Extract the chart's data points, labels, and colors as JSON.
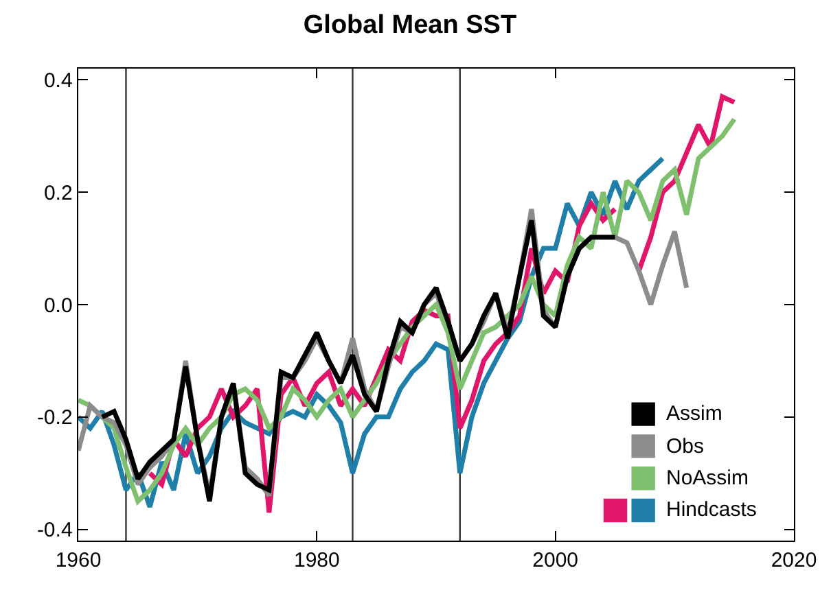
{
  "chart_data": {
    "type": "line",
    "title": "Global Mean SST",
    "xlim": [
      1960,
      2020
    ],
    "xticks": [
      1960,
      1980,
      2000,
      2020
    ],
    "ylim": [
      -0.42,
      0.42
    ],
    "yticks": [
      {
        "value": -0.4,
        "label": "-0.4"
      },
      {
        "value": -0.2,
        "label": "-0.2"
      },
      {
        "value": 0,
        "label": "0.0"
      },
      0.2,
      0.4
    ],
    "grid": false,
    "legend": "bottom right",
    "ref_lines": [
      {
        "axis": "x",
        "value": 1964,
        "color": "#333333"
      },
      {
        "axis": "x",
        "value": 1983,
        "color": "#333333"
      },
      {
        "axis": "x",
        "value": 1992,
        "color": "#333333"
      }
    ],
    "series": [
      {
        "name": "Assim",
        "color": "#000000",
        "x": [
          1962,
          1963,
          1964,
          1965,
          1966,
          1967,
          1968,
          1969,
          1970,
          1971,
          1972,
          1973,
          1974,
          1975,
          1976,
          1977,
          1978,
          1979,
          1980,
          1981,
          1982,
          1983,
          1984,
          1985,
          1986,
          1987,
          1988,
          1989,
          1990,
          1991,
          1992,
          1993,
          1994,
          1995,
          1996,
          1997,
          1998,
          1999,
          2000,
          2001,
          2002,
          2003,
          2004,
          2005
        ],
        "values": [
          -0.2,
          -0.19,
          -0.24,
          -0.31,
          -0.28,
          -0.26,
          -0.24,
          -0.11,
          -0.24,
          -0.35,
          -0.2,
          -0.14,
          -0.3,
          -0.32,
          -0.33,
          -0.12,
          -0.13,
          -0.09,
          -0.05,
          -0.1,
          -0.14,
          -0.09,
          -0.16,
          -0.19,
          -0.1,
          -0.03,
          -0.05,
          0.0,
          0.03,
          -0.03,
          -0.1,
          -0.07,
          -0.02,
          0.02,
          -0.06,
          0.05,
          0.15,
          -0.02,
          -0.04,
          0.05,
          0.1,
          0.12,
          0.12,
          0.12
        ]
      },
      {
        "name": "Obs",
        "color": "#8c8c8c",
        "x": [
          1960,
          1961,
          1962,
          1963,
          1964,
          1965,
          1966,
          1967,
          1968,
          1969,
          1970,
          1971,
          1972,
          1973,
          1974,
          1975,
          1976,
          1977,
          1978,
          1979,
          1980,
          1981,
          1982,
          1983,
          1984,
          1985,
          1986,
          1987,
          1988,
          1989,
          1990,
          1991,
          1992,
          1993,
          1994,
          1995,
          1996,
          1997,
          1998,
          1999,
          2000,
          2001,
          2002,
          2003,
          2004,
          2005,
          2006,
          2007,
          2008,
          2009,
          2010,
          2011
        ],
        "values": [
          -0.26,
          -0.18,
          -0.2,
          -0.21,
          -0.25,
          -0.32,
          -0.29,
          -0.27,
          -0.24,
          -0.1,
          -0.24,
          -0.34,
          -0.2,
          -0.14,
          -0.29,
          -0.31,
          -0.34,
          -0.13,
          -0.13,
          -0.1,
          -0.06,
          -0.1,
          -0.14,
          -0.06,
          -0.15,
          -0.19,
          -0.11,
          -0.04,
          -0.05,
          0.0,
          0.02,
          -0.03,
          -0.1,
          -0.07,
          -0.03,
          0.02,
          -0.05,
          0.05,
          0.17,
          -0.01,
          -0.04,
          0.05,
          0.1,
          0.12,
          0.12,
          0.12,
          0.11,
          0.06,
          0.0,
          0.07,
          0.13,
          0.03
        ]
      },
      {
        "name": "NoAssim",
        "color": "#7fc06e",
        "x": [
          1960,
          1961,
          1962,
          1963,
          1964,
          1965,
          1966,
          1967,
          1968,
          1969,
          1970,
          1971,
          1972,
          1973,
          1974,
          1975,
          1976,
          1977,
          1978,
          1979,
          1980,
          1981,
          1982,
          1983,
          1984,
          1985,
          1986,
          1987,
          1988,
          1989,
          1990,
          1991,
          1992,
          1993,
          1994,
          1995,
          1996,
          1997,
          1998,
          1999,
          2000,
          2001,
          2002,
          2003,
          2004,
          2005,
          2006,
          2007,
          2008,
          2009,
          2010,
          2011,
          2012,
          2013,
          2014,
          2015
        ],
        "values": [
          -0.17,
          -0.18,
          -0.2,
          -0.22,
          -0.29,
          -0.35,
          -0.33,
          -0.3,
          -0.25,
          -0.22,
          -0.25,
          -0.22,
          -0.2,
          -0.16,
          -0.15,
          -0.17,
          -0.22,
          -0.2,
          -0.15,
          -0.17,
          -0.2,
          -0.17,
          -0.15,
          -0.2,
          -0.17,
          -0.14,
          -0.1,
          -0.07,
          -0.04,
          -0.02,
          0.0,
          -0.05,
          -0.15,
          -0.1,
          -0.05,
          -0.04,
          -0.02,
          0.0,
          0.05,
          0.0,
          -0.02,
          0.07,
          0.12,
          0.1,
          0.2,
          0.12,
          0.22,
          0.2,
          0.15,
          0.22,
          0.24,
          0.16,
          0.26,
          0.28,
          0.3,
          0.33
        ]
      },
      {
        "color": "#e0166a",
        "x": [
          1966,
          1967,
          1968,
          1969,
          1970,
          1971,
          1972,
          1973,
          1974,
          1975,
          1976,
          1977,
          1978,
          1979,
          1980,
          1981,
          1982,
          1983,
          1984,
          1985,
          1986,
          1987,
          1988,
          1989,
          1990,
          1991,
          1992,
          1993,
          1994,
          1995,
          1996,
          1997,
          1998,
          1999,
          2000,
          2001,
          2002,
          2003,
          2004,
          2005,
          2006,
          2007,
          2008,
          2009,
          2010,
          2011,
          2012,
          2013,
          2014,
          2015
        ],
        "values": [
          -0.3,
          -0.32,
          -0.24,
          -0.27,
          -0.22,
          -0.2,
          -0.15,
          -0.2,
          -0.18,
          -0.15,
          -0.37,
          -0.16,
          -0.13,
          -0.18,
          -0.14,
          -0.12,
          -0.18,
          -0.15,
          -0.18,
          -0.13,
          -0.08,
          -0.1,
          -0.03,
          -0.01,
          -0.02,
          -0.02,
          -0.22,
          -0.17,
          -0.1,
          -0.07,
          -0.05,
          -0.02,
          0.1,
          0.02,
          0.06,
          0.04,
          0.14,
          0.18,
          0.15,
          0.17,
          null,
          0.06,
          0.12,
          0.2,
          0.22,
          0.27,
          0.32,
          0.28,
          0.37,
          0.36
        ]
      },
      {
        "name": "Hindcasts",
        "color": "#1f7fa8",
        "x": [
          1960,
          1961,
          1962,
          1963,
          1964,
          1965,
          1966,
          1967,
          1968,
          1969,
          1970,
          1971,
          1972,
          1973,
          1974,
          1975,
          1976,
          1977,
          1978,
          1979,
          1980,
          1981,
          1982,
          1983,
          1984,
          1985,
          1986,
          1987,
          1988,
          1989,
          1990,
          1991,
          1992,
          1993,
          1994,
          1995,
          1996,
          1997,
          1998,
          1999,
          2000,
          2001,
          2002,
          2003,
          2004,
          2005,
          2006,
          2007,
          2008,
          2009
        ],
        "values": [
          -0.2,
          -0.22,
          -0.19,
          -0.25,
          -0.33,
          -0.3,
          -0.36,
          -0.28,
          -0.33,
          -0.23,
          -0.3,
          -0.27,
          -0.22,
          -0.19,
          -0.21,
          -0.22,
          -0.23,
          -0.2,
          -0.19,
          -0.2,
          -0.16,
          -0.18,
          -0.21,
          -0.3,
          -0.23,
          -0.2,
          -0.2,
          -0.15,
          -0.12,
          -0.1,
          -0.07,
          -0.08,
          -0.3,
          -0.2,
          -0.14,
          -0.1,
          -0.06,
          -0.03,
          0.05,
          0.1,
          0.1,
          0.18,
          0.14,
          0.2,
          0.16,
          0.22,
          0.17,
          0.22,
          0.24,
          0.26
        ]
      }
    ]
  }
}
